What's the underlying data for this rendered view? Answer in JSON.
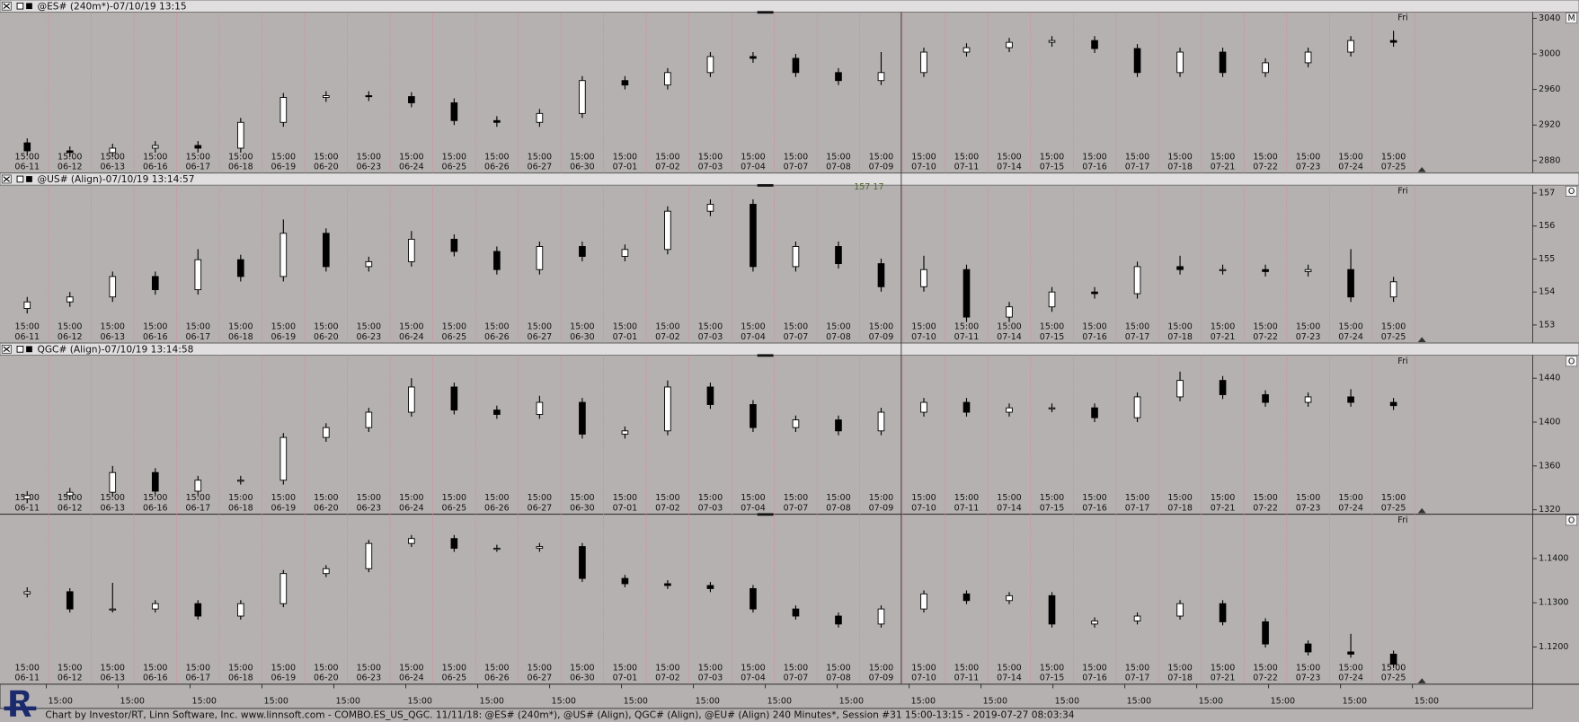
{
  "x_axis": {
    "time": "15:00",
    "dates": [
      "06-11",
      "06-12",
      "06-13",
      "06-16",
      "06-17",
      "06-18",
      "06-19",
      "06-20",
      "06-23",
      "06-24",
      "06-25",
      "06-26",
      "06-27",
      "06-30",
      "07-01",
      "07-02",
      "07-03",
      "07-04",
      "07-07",
      "07-08",
      "07-09",
      "07-10",
      "07-11",
      "07-14",
      "07-15",
      "07-16",
      "07-17",
      "07-18",
      "07-21",
      "07-22",
      "07-23",
      "07-24",
      "07-25"
    ]
  },
  "chart_data": [
    {
      "type": "candlestick",
      "title": "@ES# (240m*)-07/10/19 13:15",
      "corner_label": "Fri",
      "button": "M",
      "up_color": "#ffffff",
      "down_color": "#000000",
      "ylim": [
        2866,
        3047
      ],
      "yticks": [
        2880,
        2920,
        2960,
        3000,
        3040
      ],
      "candles": [
        [
          2900,
          2905,
          2886,
          2891
        ],
        [
          2891,
          2896,
          2884,
          2889
        ],
        [
          2889,
          2899,
          2884,
          2894
        ],
        [
          2894,
          2902,
          2889,
          2897
        ],
        [
          2897,
          2902,
          2889,
          2894
        ],
        [
          2894,
          2928,
          2889,
          2923
        ],
        [
          2923,
          2956,
          2918,
          2951
        ],
        [
          2951,
          2958,
          2946,
          2953
        ],
        [
          2953,
          2958,
          2947,
          2952
        ],
        [
          2952,
          2957,
          2940,
          2945
        ],
        [
          2945,
          2950,
          2920,
          2925
        ],
        [
          2925,
          2930,
          2918,
          2923
        ],
        [
          2923,
          2938,
          2918,
          2933
        ],
        [
          2933,
          2975,
          2928,
          2970
        ],
        [
          2970,
          2975,
          2960,
          2965
        ],
        [
          2965,
          2984,
          2960,
          2979
        ],
        [
          2979,
          3002,
          2974,
          2997
        ],
        [
          2997,
          3002,
          2990,
          2995
        ],
        [
          2995,
          3000,
          2974,
          2979
        ],
        [
          2979,
          2984,
          2965,
          2970
        ],
        [
          2970,
          3002,
          2965,
          2979
        ],
        [
          2979,
          3007,
          2974,
          3002
        ],
        [
          3002,
          3012,
          2997,
          3007
        ],
        [
          3007,
          3018,
          3002,
          3013
        ],
        [
          3013,
          3020,
          3008,
          3015
        ],
        [
          3015,
          3020,
          3001,
          3006
        ],
        [
          3006,
          3011,
          2974,
          2979
        ],
        [
          2979,
          3007,
          2974,
          3002
        ],
        [
          3002,
          3007,
          2974,
          2979
        ],
        [
          2979,
          2995,
          2974,
          2990
        ],
        [
          2990,
          3007,
          2985,
          3002
        ],
        [
          3002,
          3020,
          2997,
          3015
        ],
        [
          3015,
          3026,
          3008,
          3013
        ]
      ]
    },
    {
      "type": "candlestick",
      "title": "@US# (Align)-07/10/19 13:14:57",
      "corner_label": "Fri",
      "button": "O",
      "annotation": "157 17",
      "up_color": "#ffffff",
      "down_color": "#000000",
      "ylim": [
        152.45,
        157.24
      ],
      "yticks": [
        153,
        154,
        155,
        156,
        157
      ],
      "candles": [
        [
          153.5,
          153.85,
          153.35,
          153.7
        ],
        [
          153.7,
          154.0,
          153.55,
          153.85
        ],
        [
          153.85,
          154.62,
          153.7,
          154.47
        ],
        [
          154.47,
          154.62,
          153.92,
          154.07
        ],
        [
          154.07,
          155.3,
          153.92,
          154.98
        ],
        [
          154.98,
          155.13,
          154.32,
          154.47
        ],
        [
          154.47,
          156.2,
          154.32,
          155.78
        ],
        [
          155.78,
          155.93,
          154.62,
          154.77
        ],
        [
          154.77,
          155.07,
          154.62,
          154.92
        ],
        [
          154.92,
          155.85,
          154.77,
          155.6
        ],
        [
          155.6,
          155.75,
          155.08,
          155.23
        ],
        [
          155.23,
          155.38,
          154.53,
          154.68
        ],
        [
          154.68,
          155.53,
          154.53,
          155.38
        ],
        [
          155.38,
          155.53,
          154.93,
          155.08
        ],
        [
          155.08,
          155.44,
          154.93,
          155.29
        ],
        [
          155.29,
          156.6,
          155.14,
          156.45
        ],
        [
          156.45,
          156.81,
          156.3,
          156.66
        ],
        [
          156.66,
          156.81,
          154.62,
          154.77
        ],
        [
          154.77,
          155.53,
          154.62,
          155.38
        ],
        [
          155.38,
          155.53,
          154.71,
          154.86
        ],
        [
          154.86,
          155.01,
          154.01,
          154.16
        ],
        [
          154.16,
          155.1,
          154.01,
          154.68
        ],
        [
          154.68,
          154.83,
          153.09,
          153.24
        ],
        [
          153.24,
          153.7,
          153.09,
          153.55
        ],
        [
          153.55,
          154.15,
          153.4,
          154.0
        ],
        [
          154.0,
          154.15,
          153.8,
          153.95
        ],
        [
          153.95,
          154.92,
          153.8,
          154.77
        ],
        [
          154.77,
          155.1,
          154.53,
          154.68
        ],
        [
          154.68,
          154.83,
          154.53,
          154.68
        ],
        [
          154.68,
          154.83,
          154.47,
          154.62
        ],
        [
          154.62,
          154.83,
          154.47,
          154.68
        ],
        [
          154.68,
          155.3,
          153.7,
          153.85
        ],
        [
          153.85,
          154.46,
          153.7,
          154.31
        ]
      ]
    },
    {
      "type": "candlestick",
      "title": "QGC# (Align)-07/10/19 13:14:58",
      "corner_label": "Fri",
      "button": "O",
      "up_color": "#ffffff",
      "down_color": "#000000",
      "ylim": [
        1316,
        1461
      ],
      "yticks": [
        1320,
        1360,
        1400,
        1440
      ],
      "candles": [
        [
          1330,
          1337,
          1326,
          1333
        ],
        [
          1333,
          1340,
          1329,
          1336
        ],
        [
          1336,
          1360,
          1332,
          1354
        ],
        [
          1354,
          1358,
          1333,
          1337
        ],
        [
          1337,
          1351,
          1333,
          1347
        ],
        [
          1347,
          1351,
          1343,
          1347
        ],
        [
          1347,
          1390,
          1343,
          1386
        ],
        [
          1386,
          1399,
          1382,
          1395
        ],
        [
          1395,
          1413,
          1391,
          1409
        ],
        [
          1409,
          1440,
          1405,
          1432
        ],
        [
          1432,
          1436,
          1407,
          1411
        ],
        [
          1411,
          1415,
          1403,
          1407
        ],
        [
          1407,
          1424,
          1403,
          1418
        ],
        [
          1418,
          1422,
          1385,
          1389
        ],
        [
          1389,
          1396,
          1385,
          1392
        ],
        [
          1392,
          1438,
          1388,
          1432
        ],
        [
          1432,
          1436,
          1412,
          1416
        ],
        [
          1416,
          1420,
          1391,
          1395
        ],
        [
          1395,
          1406,
          1391,
          1402
        ],
        [
          1402,
          1406,
          1388,
          1392
        ],
        [
          1392,
          1413,
          1388,
          1409
        ],
        [
          1409,
          1422,
          1405,
          1418
        ],
        [
          1418,
          1422,
          1405,
          1409
        ],
        [
          1409,
          1417,
          1405,
          1413
        ],
        [
          1413,
          1417,
          1409,
          1413
        ],
        [
          1413,
          1417,
          1400,
          1404
        ],
        [
          1404,
          1427,
          1400,
          1423
        ],
        [
          1423,
          1446,
          1419,
          1438
        ],
        [
          1438,
          1442,
          1421,
          1425
        ],
        [
          1425,
          1429,
          1414,
          1418
        ],
        [
          1418,
          1427,
          1414,
          1423
        ],
        [
          1423,
          1430,
          1414,
          1418
        ],
        [
          1418,
          1422,
          1411,
          1415
        ]
      ]
    },
    {
      "type": "candlestick",
      "corner_label": "Fri",
      "button": "O",
      "up_color": "#ffffff",
      "down_color": "#000000",
      "ylim": [
        1.1116,
        1.15
      ],
      "yticks": [
        {
          "value": 1.12,
          "label": "1.1200"
        },
        {
          "value": 1.13,
          "label": "1.1300"
        },
        {
          "value": 1.14,
          "label": "1.1400"
        }
      ],
      "candles": [
        [
          1.132,
          1.1335,
          1.1312,
          1.1325
        ],
        [
          1.1325,
          1.1333,
          1.1278,
          1.1286
        ],
        [
          1.1286,
          1.1345,
          1.1278,
          1.1286
        ],
        [
          1.1286,
          1.1306,
          1.1278,
          1.1298
        ],
        [
          1.1298,
          1.1306,
          1.1262,
          1.127
        ],
        [
          1.127,
          1.1306,
          1.1262,
          1.1298
        ],
        [
          1.1298,
          1.1374,
          1.129,
          1.1366
        ],
        [
          1.1366,
          1.1385,
          1.1358,
          1.1377
        ],
        [
          1.1377,
          1.1442,
          1.1369,
          1.1434
        ],
        [
          1.1434,
          1.1453,
          1.1426,
          1.1445
        ],
        [
          1.1445,
          1.1453,
          1.1415,
          1.1423
        ],
        [
          1.1423,
          1.1431,
          1.1415,
          1.1423
        ],
        [
          1.1423,
          1.1435,
          1.1415,
          1.1427
        ],
        [
          1.1427,
          1.1435,
          1.1347,
          1.1355
        ],
        [
          1.1355,
          1.1363,
          1.1335,
          1.1343
        ],
        [
          1.1343,
          1.1351,
          1.1331,
          1.1339
        ],
        [
          1.1339,
          1.1347,
          1.1324,
          1.1332
        ],
        [
          1.1332,
          1.134,
          1.1278,
          1.1286
        ],
        [
          1.1286,
          1.1294,
          1.1262,
          1.127
        ],
        [
          1.127,
          1.1278,
          1.1244,
          1.1252
        ],
        [
          1.1252,
          1.1294,
          1.1244,
          1.1286
        ],
        [
          1.1286,
          1.1328,
          1.1278,
          1.132
        ],
        [
          1.132,
          1.1328,
          1.1297,
          1.1305
        ],
        [
          1.1305,
          1.1324,
          1.1297,
          1.1316
        ],
        [
          1.1316,
          1.1324,
          1.1244,
          1.1252
        ],
        [
          1.1252,
          1.1267,
          1.1244,
          1.1259
        ],
        [
          1.1259,
          1.1278,
          1.1251,
          1.127
        ],
        [
          1.127,
          1.1306,
          1.1262,
          1.1298
        ],
        [
          1.1298,
          1.1306,
          1.1249,
          1.1257
        ],
        [
          1.1257,
          1.1265,
          1.1199,
          1.1207
        ],
        [
          1.1207,
          1.1215,
          1.1181,
          1.1189
        ],
        [
          1.1189,
          1.123,
          1.1176,
          1.1184
        ],
        [
          1.1184,
          1.1192,
          1.1153,
          1.1161
        ]
      ]
    }
  ],
  "bottom_axis": {
    "labels": [
      "15:00",
      "15:00",
      "15:00",
      "15:00",
      "15:00",
      "15:00",
      "15:00",
      "15:00",
      "15:00",
      "15:00",
      "15:00",
      "15:00",
      "15:00",
      "15:00",
      "15:00",
      "15:00",
      "15:00",
      "15:00",
      "15:00",
      "15:00"
    ]
  },
  "footer": "Chart by Investor/RT, Linn Software, Inc. www.linnsoft.com - COMBO.ES_US_QGC.  11/11/18: @ES# (240m*), @US# (Align), QGC# (Align), @EU# (Align) 240 Minutes*, Session #31 15:00-13:15 - 2019-07-27 08:03:34"
}
